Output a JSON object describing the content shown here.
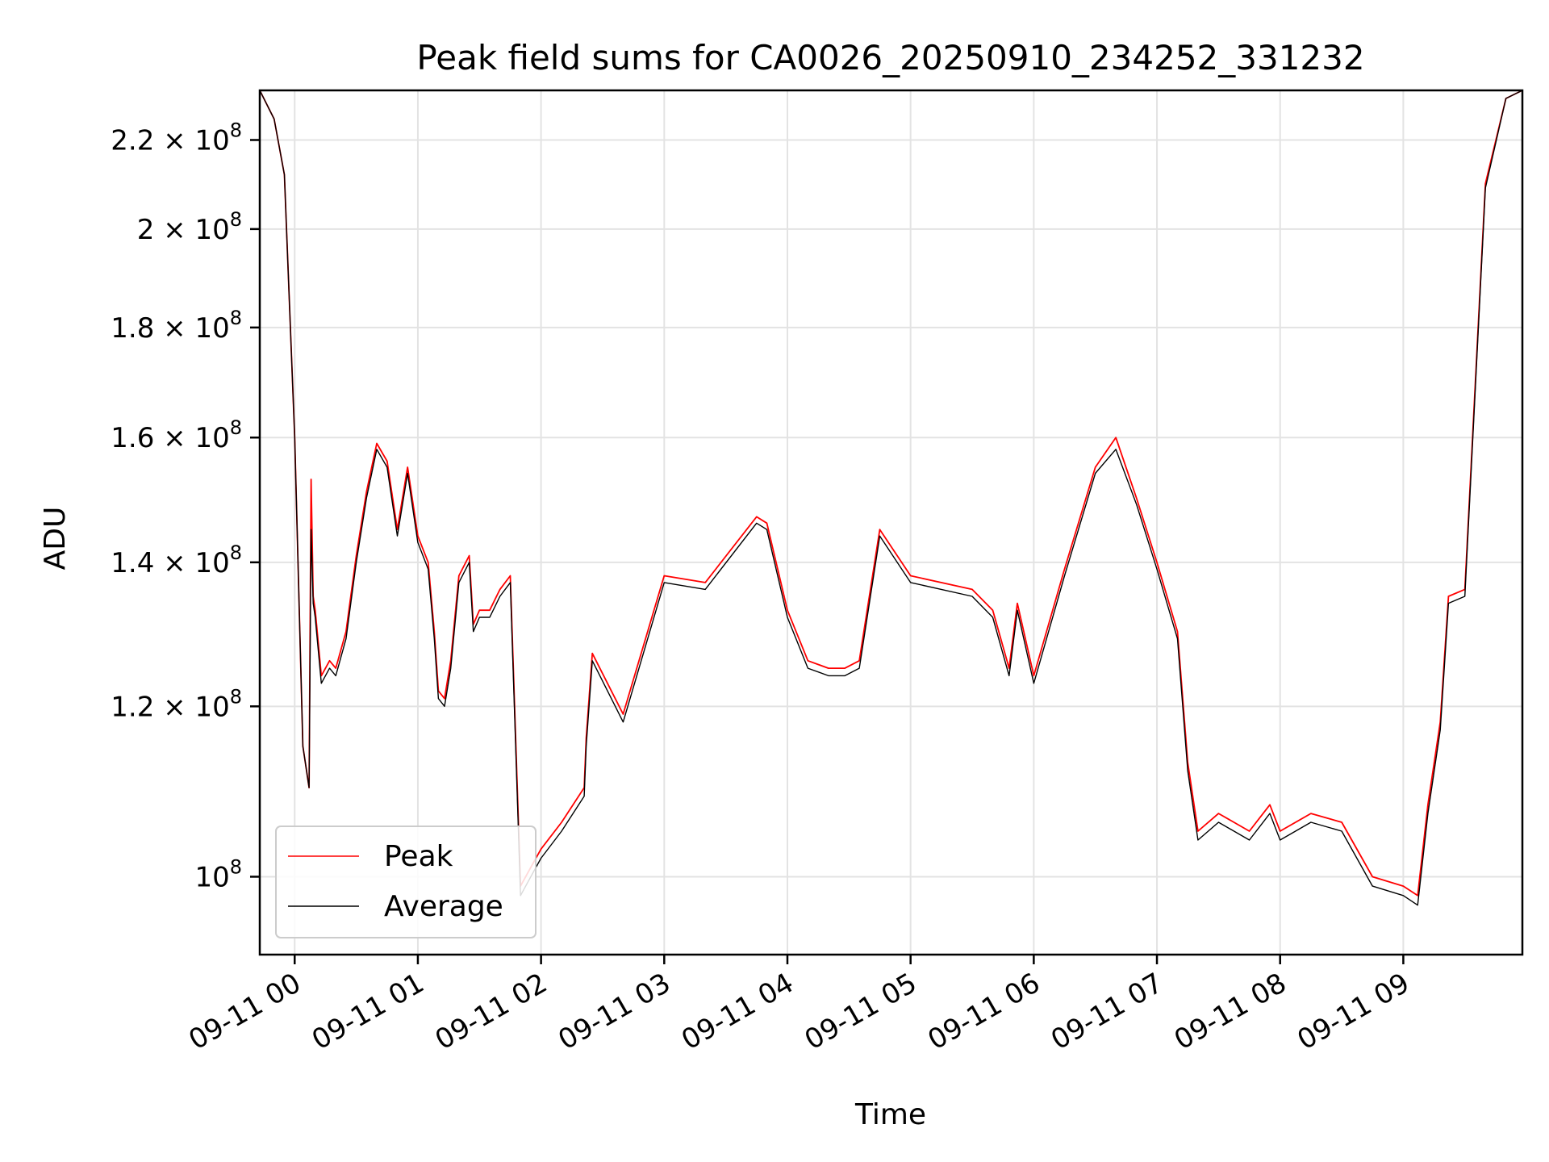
{
  "chart_data": {
    "type": "line",
    "title": "Peak field sums for CA0026_20250910_234252_331232",
    "xlabel": "Time",
    "ylabel": "ADU",
    "yscale": "log",
    "grid": true,
    "legend_position": "bottom-left",
    "xlim": [
      "2025-09-10 23:43",
      "2025-09-11 09:58"
    ],
    "ylim": [
      92000000,
      232000000
    ],
    "x_ticks": [
      {
        "value": "2025-09-11 00:00",
        "label": "09-11 00"
      },
      {
        "value": "2025-09-11 01:00",
        "label": "09-11 01"
      },
      {
        "value": "2025-09-11 02:00",
        "label": "09-11 02"
      },
      {
        "value": "2025-09-11 03:00",
        "label": "09-11 03"
      },
      {
        "value": "2025-09-11 04:00",
        "label": "09-11 04"
      },
      {
        "value": "2025-09-11 05:00",
        "label": "09-11 05"
      },
      {
        "value": "2025-09-11 06:00",
        "label": "09-11 06"
      },
      {
        "value": "2025-09-11 07:00",
        "label": "09-11 07"
      },
      {
        "value": "2025-09-11 08:00",
        "label": "09-11 08"
      },
      {
        "value": "2025-09-11 09:00",
        "label": "09-11 09"
      }
    ],
    "y_ticks": [
      {
        "value": 100000000,
        "mantissa": "",
        "exponent": "8"
      },
      {
        "value": 120000000,
        "mantissa": "1.2",
        "exponent": "8"
      },
      {
        "value": 140000000,
        "mantissa": "1.4",
        "exponent": "8"
      },
      {
        "value": 160000000,
        "mantissa": "1.6",
        "exponent": "8"
      },
      {
        "value": 180000000,
        "mantissa": "1.8",
        "exponent": "8"
      },
      {
        "value": 200000000,
        "mantissa": "2",
        "exponent": "8"
      },
      {
        "value": 220000000,
        "mantissa": "2.2",
        "exponent": "8"
      }
    ],
    "x": [
      "2025-09-10 23:43",
      "2025-09-10 23:50",
      "2025-09-10 23:55",
      "2025-09-11 00:00",
      "2025-09-11 00:04",
      "2025-09-11 00:07",
      "2025-09-11 00:08",
      "2025-09-11 00:09",
      "2025-09-11 00:10",
      "2025-09-11 00:13",
      "2025-09-11 00:17",
      "2025-09-11 00:20",
      "2025-09-11 00:25",
      "2025-09-11 00:30",
      "2025-09-11 00:35",
      "2025-09-11 00:40",
      "2025-09-11 00:45",
      "2025-09-11 00:50",
      "2025-09-11 00:55",
      "2025-09-11 01:00",
      "2025-09-11 01:05",
      "2025-09-11 01:08",
      "2025-09-11 01:10",
      "2025-09-11 01:13",
      "2025-09-11 01:16",
      "2025-09-11 01:20",
      "2025-09-11 01:25",
      "2025-09-11 01:27",
      "2025-09-11 01:30",
      "2025-09-11 01:35",
      "2025-09-11 01:40",
      "2025-09-11 01:45",
      "2025-09-11 01:50",
      "2025-09-11 01:55",
      "2025-09-11 02:00",
      "2025-09-11 02:10",
      "2025-09-11 02:21",
      "2025-09-11 02:22",
      "2025-09-11 02:25",
      "2025-09-11 02:40",
      "2025-09-11 03:00",
      "2025-09-11 03:20",
      "2025-09-11 03:45",
      "2025-09-11 03:50",
      "2025-09-11 04:00",
      "2025-09-11 04:10",
      "2025-09-11 04:20",
      "2025-09-11 04:28",
      "2025-09-11 04:35",
      "2025-09-11 04:45",
      "2025-09-11 05:00",
      "2025-09-11 05:30",
      "2025-09-11 05:40",
      "2025-09-11 05:48",
      "2025-09-11 05:52",
      "2025-09-11 06:00",
      "2025-09-11 06:15",
      "2025-09-11 06:30",
      "2025-09-11 06:40",
      "2025-09-11 06:50",
      "2025-09-11 07:00",
      "2025-09-11 07:10",
      "2025-09-11 07:15",
      "2025-09-11 07:20",
      "2025-09-11 07:30",
      "2025-09-11 07:45",
      "2025-09-11 07:55",
      "2025-09-11 08:00",
      "2025-09-11 08:15",
      "2025-09-11 08:30",
      "2025-09-11 08:45",
      "2025-09-11 09:00",
      "2025-09-11 09:07",
      "2025-09-11 09:12",
      "2025-09-11 09:18",
      "2025-09-11 09:22",
      "2025-09-11 09:30",
      "2025-09-11 09:40",
      "2025-09-11 09:50",
      "2025-09-11 09:58"
    ],
    "series": [
      {
        "name": "Peak",
        "color": "#ff0000",
        "values": [
          232000000,
          225000000,
          212000000,
          160000000,
          115000000,
          110000000,
          153000000,
          135000000,
          133000000,
          124000000,
          126000000,
          125000000,
          130000000,
          141000000,
          151000000,
          159000000,
          156000000,
          145000000,
          155000000,
          144000000,
          140000000,
          130000000,
          122000000,
          121000000,
          126000000,
          138000000,
          141000000,
          131000000,
          133000000,
          133000000,
          136000000,
          138000000,
          99000000,
          101000000,
          103000000,
          106000000,
          110000000,
          116000000,
          127000000,
          119000000,
          138000000,
          137000000,
          147000000,
          146000000,
          133000000,
          126000000,
          125000000,
          125000000,
          126000000,
          145000000,
          138000000,
          136000000,
          133000000,
          125000000,
          134000000,
          124000000,
          139000000,
          155000000,
          160000000,
          150000000,
          140000000,
          130000000,
          113000000,
          105000000,
          107000000,
          105000000,
          108000000,
          105000000,
          107000000,
          106000000,
          100000000,
          99000000,
          98000000,
          108000000,
          118000000,
          135000000,
          136000000,
          210000000,
          230000000,
          232000000
        ]
      },
      {
        "name": "Average",
        "color": "#000000",
        "values": [
          232000000,
          225000000,
          212000000,
          160000000,
          115000000,
          110000000,
          145000000,
          134000000,
          132000000,
          123000000,
          125000000,
          124000000,
          129000000,
          140000000,
          150000000,
          158000000,
          155000000,
          144000000,
          154000000,
          143000000,
          139000000,
          129000000,
          121000000,
          120000000,
          125000000,
          137000000,
          140000000,
          130000000,
          132000000,
          132000000,
          135000000,
          137000000,
          98000000,
          100000000,
          102000000,
          105000000,
          109000000,
          115000000,
          126000000,
          118000000,
          137000000,
          136000000,
          146000000,
          145000000,
          132000000,
          125000000,
          124000000,
          124000000,
          125000000,
          144000000,
          137000000,
          135000000,
          132000000,
          124000000,
          133000000,
          123000000,
          138000000,
          154000000,
          158000000,
          149000000,
          139000000,
          129000000,
          112000000,
          104000000,
          106000000,
          104000000,
          107000000,
          104000000,
          106000000,
          105000000,
          99000000,
          98000000,
          97000000,
          107000000,
          117000000,
          134000000,
          135000000,
          209000000,
          230000000,
          232000000
        ]
      }
    ]
  }
}
